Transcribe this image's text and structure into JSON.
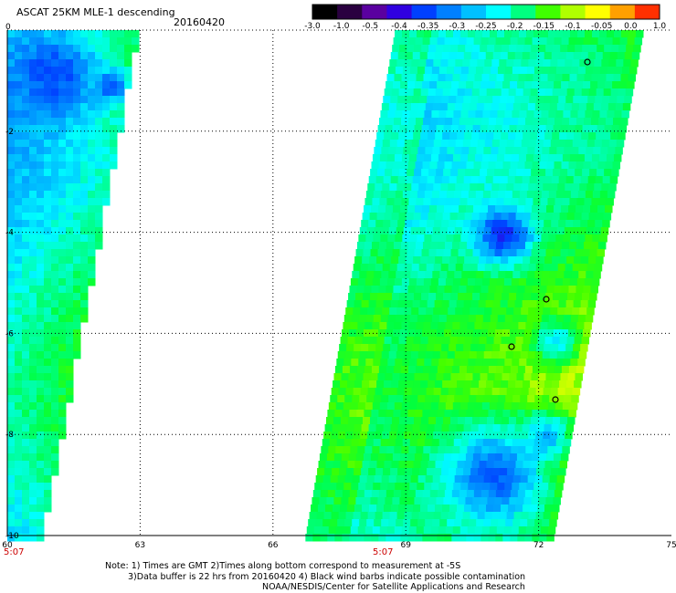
{
  "title": "ASCAT 25KM MLE-1 descending",
  "date": "20160420",
  "colorbar": {
    "tick_labels": [
      "-3.0",
      "-1.0",
      "-0.5",
      "-0.4",
      "-0.35",
      "-0.3",
      "-0.25",
      "-0.2",
      "-0.15",
      "-0.1",
      "-0.05",
      "0.0",
      "1.0"
    ],
    "colors": [
      "#000000",
      "#2a0040",
      "#5a00a0",
      "#3000e0",
      "#0040ff",
      "#0080ff",
      "#00c0ff",
      "#00ffff",
      "#00ff80",
      "#40ff00",
      "#b0ff00",
      "#ffff00",
      "#ffa000",
      "#ff3000"
    ]
  },
  "time_labels": [
    "5:07",
    "5:07"
  ],
  "notes": [
    "Note: 1) Times are GMT 2)Times along bottom correspond to measurement at -5S",
    "3)Data buffer is 22 hrs from 20160420 4) Black wind barbs indicate possible contamination",
    "NOAA/NESDIS/Center for Satellite Applications and Research"
  ],
  "chart_data": {
    "type": "heatmap",
    "title": "ASCAT 25KM MLE-1 descending",
    "subtitle": "20160420",
    "x_ticks": [
      60,
      63,
      66,
      69,
      72,
      75
    ],
    "y_ticks": [
      0,
      -2,
      -4,
      -6,
      -8,
      -10
    ],
    "xlim": [
      60,
      75
    ],
    "ylim": [
      -10,
      0
    ],
    "grid": true,
    "colorbar_ticks": [
      -3.0,
      -1.0,
      -0.5,
      -0.4,
      -0.35,
      -0.3,
      -0.25,
      -0.2,
      -0.15,
      -0.1,
      -0.05,
      0.0,
      1.0
    ]
  }
}
